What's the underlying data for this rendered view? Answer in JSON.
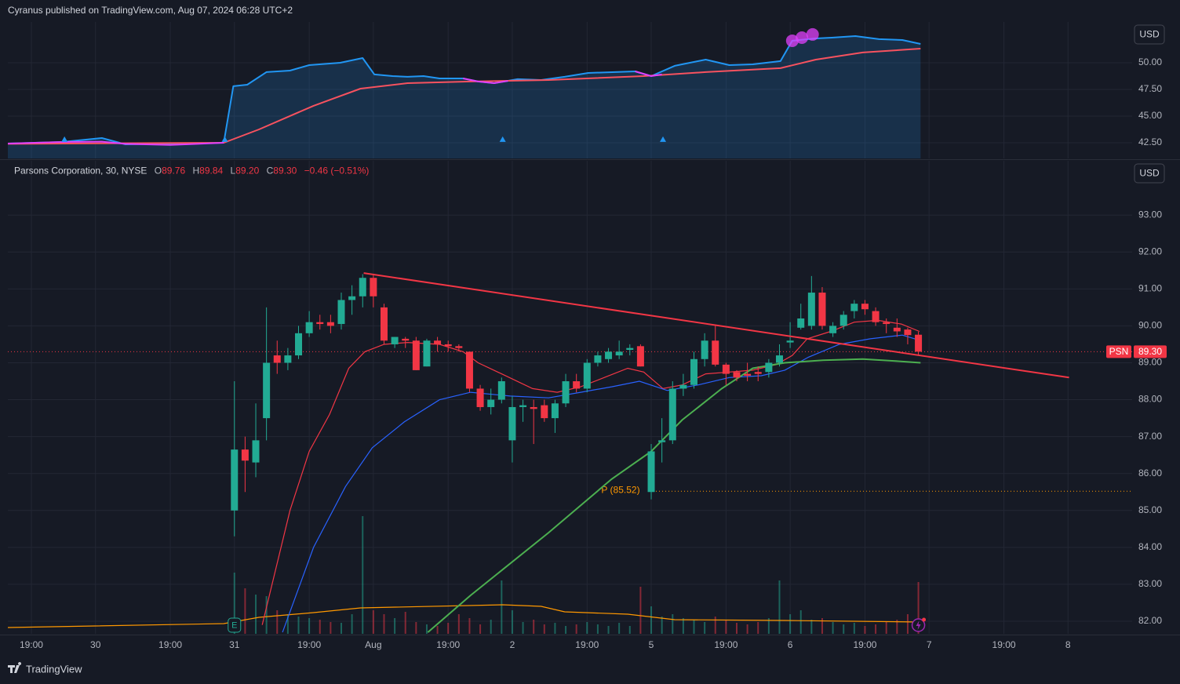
{
  "header": {
    "text": "Cyranus published on TradingView.com, Aug 07, 2024 06:28 UTC+2"
  },
  "footer": {
    "brand": "TradingView"
  },
  "chart_data": [
    {
      "type": "line",
      "currency": "USD",
      "xlim": [
        -21.2,
        84
      ],
      "ylim": [
        41.03,
        53.82
      ],
      "yticks": [
        {
          "value": 50,
          "label": "50.00"
        },
        {
          "value": 47.5,
          "label": "47.50"
        },
        {
          "value": 45,
          "label": "45.00"
        },
        {
          "value": 42.5,
          "label": "42.50"
        }
      ],
      "grid": true,
      "series": [
        {
          "color": "#2196f3",
          "fill": true,
          "x": [
            -21.2,
            -16.1,
            -12.4,
            -10.2,
            -1,
            -0.1,
            1.2,
            3,
            5.2,
            7,
            9.9,
            12,
            13.1,
            14.8,
            16.2,
            17.7,
            19.2,
            21.4,
            22.8,
            24.3,
            26.5,
            28.7,
            30.9,
            33.1,
            37.5,
            39,
            41.2,
            43.4,
            44.1,
            46.3,
            48.5,
            51.1,
            52.2,
            54.4,
            55.9,
            58.1,
            60.3,
            62.5,
            64.2
          ],
          "values": [
            42.43,
            42.57,
            42.94,
            42.35,
            42.5,
            47.8,
            47.94,
            49.12,
            49.26,
            49.78,
            50,
            50.44,
            48.9,
            48.75,
            48.68,
            48.75,
            48.53,
            48.53,
            48.24,
            48.09,
            48.46,
            48.38,
            48.68,
            49.04,
            49.19,
            48.75,
            49.71,
            50.15,
            50.29,
            49.78,
            49.85,
            50.15,
            52.06,
            52.28,
            52.35,
            52.5,
            52.21,
            52.13,
            51.76
          ]
        },
        {
          "color": "#f7525f",
          "x": [
            -21.2,
            -1,
            2.3,
            7.4,
            11.8,
            16.2,
            22.1,
            29.4,
            38.3,
            44.1,
            51.1,
            54.4,
            58.8,
            64.2
          ],
          "values": [
            42.4,
            42.5,
            43.75,
            45.96,
            47.57,
            48.09,
            48.24,
            48.38,
            48.75,
            49.12,
            49.49,
            50.29,
            50.96,
            51.32
          ]
        },
        {
          "color": "#e040fb",
          "x": [
            -21.2,
            -16.1,
            -12.4,
            -10.2,
            -6,
            -1,
            20,
            21.4,
            22.8,
            24.3,
            25.6,
            30,
            37.5,
            39,
            40
          ],
          "values": [
            42.43,
            42.57,
            42.6,
            42.4,
            42.3,
            42.5,
            null,
            48.53,
            48.24,
            48.09,
            48.3,
            null,
            49.19,
            48.75,
            48.9
          ]
        }
      ],
      "signals": {
        "color": "#2196f3",
        "x": [
          -15.9,
          -0.9,
          25.1,
          40.1
        ],
        "values": [
          42.8,
          42.8,
          42.8,
          42.8
        ]
      },
      "markers": {
        "color": "#e040fb",
        "x": [
          52.2,
          53.1,
          54.1
        ],
        "values": [
          52.06,
          52.35,
          52.65
        ]
      }
    },
    {
      "type": "candlestick",
      "title": "Parsons Corporation, 30, NYSE",
      "legend": [
        {
          "key": "O",
          "value": "89.76"
        },
        {
          "key": "H",
          "value": "89.84"
        },
        {
          "key": "L",
          "value": "89.20"
        },
        {
          "key": "C",
          "value": "89.30"
        }
      ],
      "change": "−0.46 (−0.51%)",
      "currency": "USD",
      "symbol": "PSN",
      "earnings_label": "E",
      "up_color": "#22ab94",
      "down_color": "#f23645",
      "xlim": [
        -21.2,
        84
      ],
      "xticks": [
        {
          "value": -19,
          "label": "19:00"
        },
        {
          "value": -13,
          "label": "30"
        },
        {
          "value": -6,
          "label": "19:00"
        },
        {
          "value": 0,
          "label": "31"
        },
        {
          "value": 7,
          "label": "19:00"
        },
        {
          "value": 13,
          "label": "Aug"
        },
        {
          "value": 20,
          "label": "19:00"
        },
        {
          "value": 26,
          "label": "2"
        },
        {
          "value": 33,
          "label": "19:00"
        },
        {
          "value": 39,
          "label": "5"
        },
        {
          "value": 46,
          "label": "19:00"
        },
        {
          "value": 52,
          "label": "6"
        },
        {
          "value": 59,
          "label": "19:00"
        },
        {
          "value": 65,
          "label": "7"
        },
        {
          "value": 72,
          "label": "19:00"
        },
        {
          "value": 78,
          "label": "8"
        }
      ],
      "ylim": [
        81.66,
        94.47
      ],
      "yticks": [
        {
          "value": 93,
          "label": "93.00"
        },
        {
          "value": 92,
          "label": "92.00"
        },
        {
          "value": 91,
          "label": "91.00"
        },
        {
          "value": 90,
          "label": "90.00"
        },
        {
          "value": 89,
          "label": "89.00"
        },
        {
          "value": 88,
          "label": "88.00"
        },
        {
          "value": 87,
          "label": "87.00"
        },
        {
          "value": 86,
          "label": "86.00"
        },
        {
          "value": 85,
          "label": "85.00"
        },
        {
          "value": 84,
          "label": "84.00"
        },
        {
          "value": 83,
          "label": "83.00"
        },
        {
          "value": 82,
          "label": "82.00"
        }
      ],
      "grid": true,
      "x": [
        0,
        1,
        2,
        3,
        4,
        5,
        6,
        7,
        8,
        9,
        10,
        11,
        12,
        13,
        14,
        15,
        16,
        17,
        18,
        19,
        20,
        21,
        22,
        23,
        24,
        25,
        26,
        27,
        28,
        29,
        30,
        31,
        32,
        33,
        34,
        35,
        36,
        37,
        38,
        39,
        40,
        41,
        42,
        43,
        44,
        45,
        46,
        47,
        48,
        49,
        50,
        51,
        52,
        53,
        54,
        55,
        56,
        57,
        58,
        59,
        60,
        61,
        62,
        63,
        64
      ],
      "open": [
        85.0,
        86.65,
        86.3,
        87.5,
        89.2,
        89.0,
        89.2,
        89.8,
        90.1,
        90.1,
        90.05,
        90.7,
        90.8,
        91.3,
        90.5,
        89.5,
        89.65,
        89.6,
        88.9,
        89.6,
        89.5,
        89.45,
        89.3,
        88.3,
        87.8,
        88.0,
        86.9,
        87.8,
        87.8,
        87.85,
        87.5,
        87.9,
        88.5,
        88.3,
        89.0,
        89.1,
        89.2,
        89.35,
        89.45,
        85.5,
        86.85,
        86.9,
        88.3,
        88.4,
        89.1,
        89.6,
        88.95,
        88.75,
        88.7,
        88.75,
        88.75,
        89.0,
        89.55,
        89.95,
        90.0,
        90.9,
        89.8,
        90.0,
        90.4,
        90.6,
        90.4,
        90.1,
        89.95,
        89.9,
        89.76
      ],
      "high": [
        88.5,
        87.0,
        87.9,
        90.5,
        89.6,
        89.4,
        90.0,
        90.4,
        90.3,
        90.3,
        90.9,
        91.1,
        91.4,
        91.4,
        90.6,
        89.7,
        89.7,
        89.7,
        89.65,
        89.7,
        89.6,
        89.5,
        89.3,
        88.4,
        88.3,
        88.6,
        88.1,
        88.0,
        88.0,
        88.0,
        88.0,
        88.7,
        88.7,
        89.1,
        89.3,
        89.4,
        89.6,
        89.5,
        89.5,
        86.8,
        87.5,
        88.5,
        88.7,
        89.3,
        89.8,
        90.0,
        89.0,
        88.8,
        89.0,
        88.9,
        89.1,
        89.5,
        90.1,
        90.6,
        91.35,
        91.05,
        90.1,
        90.4,
        90.7,
        90.7,
        90.5,
        90.2,
        90.2,
        89.95,
        89.84
      ],
      "low": [
        84.3,
        85.5,
        85.9,
        86.9,
        88.7,
        88.8,
        89.1,
        89.7,
        89.9,
        89.8,
        89.9,
        90.3,
        90.5,
        90.5,
        89.5,
        89.4,
        89.4,
        88.8,
        88.9,
        89.3,
        89.3,
        89.3,
        88.2,
        87.7,
        87.6,
        87.9,
        86.3,
        87.4,
        86.8,
        87.4,
        87.1,
        87.8,
        88.2,
        88.2,
        88.9,
        89.0,
        89.1,
        89.2,
        88.9,
        85.3,
        86.3,
        86.8,
        88.1,
        88.3,
        88.9,
        88.9,
        88.4,
        88.5,
        88.5,
        88.5,
        88.6,
        88.9,
        89.4,
        89.9,
        89.9,
        89.9,
        89.7,
        89.9,
        90.2,
        90.3,
        90.0,
        89.8,
        89.7,
        89.5,
        89.2
      ],
      "close": [
        86.65,
        86.35,
        86.9,
        89.0,
        89.0,
        89.2,
        89.8,
        90.1,
        90.05,
        90.0,
        90.7,
        90.8,
        91.3,
        90.8,
        89.6,
        89.7,
        89.6,
        88.8,
        89.6,
        89.5,
        89.45,
        89.4,
        88.3,
        87.8,
        88.0,
        88.5,
        87.8,
        87.85,
        87.75,
        87.5,
        87.9,
        88.5,
        88.3,
        89.0,
        89.2,
        89.3,
        89.3,
        89.4,
        88.9,
        86.6,
        86.9,
        88.3,
        88.4,
        89.1,
        89.6,
        88.95,
        88.7,
        88.6,
        88.65,
        88.7,
        89.0,
        89.2,
        89.6,
        90.2,
        90.9,
        90.0,
        90.0,
        90.3,
        90.6,
        90.45,
        90.1,
        90.05,
        89.85,
        89.75,
        89.3
      ],
      "volume": {
        "values": [
          78,
          58,
          50,
          48,
          30,
          25,
          22,
          20,
          18,
          15,
          14,
          25,
          150,
          30,
          25,
          20,
          28,
          15,
          12,
          10,
          14,
          25,
          20,
          12,
          18,
          68,
          30,
          15,
          18,
          12,
          14,
          10,
          12,
          15,
          12,
          10,
          14,
          10,
          60,
          35,
          22,
          25,
          20,
          18,
          15,
          22,
          18,
          14,
          12,
          15,
          20,
          68,
          25,
          30,
          18,
          20,
          15,
          12,
          14,
          10,
          12,
          15,
          18,
          25,
          66
        ]
      },
      "volume_ma": {
        "color": "#ff9800",
        "x": [
          -21.2,
          -1,
          2.3,
          7.4,
          11.8,
          25.1,
          28.7,
          30.9,
          36.8,
          41.2,
          51.5,
          64.2
        ],
        "values": [
          8,
          13,
          21,
          27,
          33,
          37,
          35,
          28,
          25,
          18,
          17,
          15
        ]
      },
      "series": [
        {
          "color": "#f23645",
          "x": [
            2.6,
            5.2,
            7,
            8.9,
            10.7,
            12.2,
            14,
            16.2,
            19.2,
            21.4,
            22.8,
            25,
            27.9,
            30.2,
            32.4,
            34.6,
            36.8,
            38.3,
            40.1,
            41.9,
            44.1,
            46.3,
            48.5,
            50.7,
            52.2,
            53.6,
            55.8,
            58,
            60.2,
            62.4,
            64.1
          ],
          "values": [
            81.9,
            85.0,
            86.6,
            87.6,
            88.85,
            89.3,
            89.5,
            89.55,
            89.5,
            89.3,
            89.0,
            88.7,
            88.3,
            88.2,
            88.35,
            88.6,
            88.85,
            88.75,
            88.3,
            88.4,
            88.7,
            88.75,
            88.8,
            88.95,
            89.2,
            89.65,
            89.85,
            90.1,
            90.15,
            90.05,
            89.85
          ]
        },
        {
          "color": "#2962ff",
          "x": [
            4.5,
            7.4,
            10.4,
            12.9,
            15.9,
            19.2,
            22.1,
            25.8,
            29.4,
            32.4,
            35.3,
            37.9,
            40.5,
            43.4,
            46.3,
            49.3,
            51.5,
            53.7,
            56.6,
            59.5,
            62.5,
            64.2
          ],
          "values": [
            81.7,
            84.0,
            85.65,
            86.7,
            87.4,
            88.0,
            88.2,
            88.1,
            88.05,
            88.2,
            88.35,
            88.5,
            88.25,
            88.4,
            88.6,
            88.65,
            88.8,
            89.15,
            89.5,
            89.65,
            89.75,
            89.6
          ]
        },
        {
          "color": "#4caf50",
          "x": [
            18.1,
            22.1,
            29.4,
            35.3,
            39,
            41.9,
            45.6,
            48.5,
            51.5,
            55.1,
            58.8,
            61.7,
            64.2
          ],
          "values": [
            81.7,
            82.7,
            84.4,
            85.85,
            86.6,
            87.45,
            88.3,
            88.85,
            89.0,
            89.07,
            89.1,
            89.05,
            89.0
          ]
        }
      ],
      "trendline": {
        "color": "#f23645",
        "x": [
          12.1,
          78.1
        ],
        "values": [
          91.43,
          88.6
        ]
      },
      "level": {
        "color": "#ff9800",
        "value": 85.52,
        "label": "P (85.52)"
      },
      "last_price": {
        "color": "#f23645",
        "value": 89.3,
        "label": "89.30"
      }
    }
  ]
}
